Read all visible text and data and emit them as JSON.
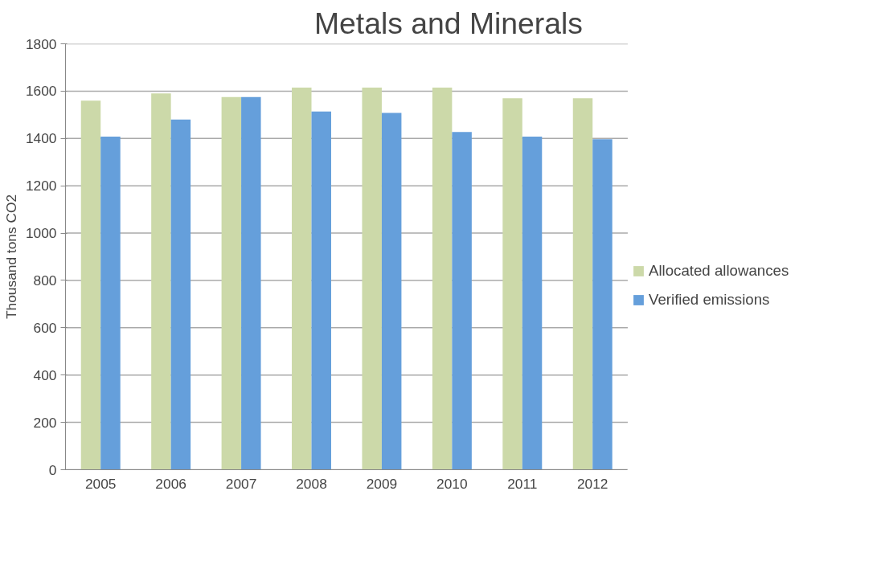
{
  "chart_data": {
    "type": "bar",
    "title": "Metals and Minerals",
    "ylabel": "Thousand tons CO2",
    "categories": [
      "2005",
      "2006",
      "2007",
      "2008",
      "2009",
      "2010",
      "2011",
      "2012"
    ],
    "series": [
      {
        "name": "Allocated allowances",
        "color": "#ccd9a9",
        "values": [
          1560,
          1590,
          1575,
          1615,
          1615,
          1615,
          1570,
          1570
        ]
      },
      {
        "name": "Verified emissions",
        "color": "#659fdb",
        "values": [
          1408,
          1480,
          1575,
          1514,
          1508,
          1427,
          1408,
          1397
        ]
      }
    ],
    "ylim": [
      0,
      1800
    ],
    "yticks": [
      0,
      200,
      400,
      600,
      800,
      1000,
      1200,
      1400,
      1600,
      1800
    ],
    "grid": "y",
    "legend": "right"
  }
}
